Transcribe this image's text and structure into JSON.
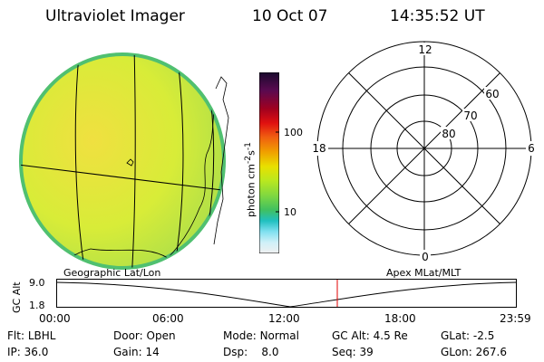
{
  "header": {
    "instrument": "Ultraviolet Imager",
    "date": "10 Oct 07",
    "time": "14:35:52 UT"
  },
  "colorbar": {
    "unit_label": "photon cm",
    "unit_sup1": "-2",
    "unit_mid": "s",
    "unit_sup2": "-1",
    "tick_high": "100",
    "tick_low": "10",
    "colors": [
      "#1a0a2e",
      "#5a0a50",
      "#a00020",
      "#e01010",
      "#f06010",
      "#f0a000",
      "#e8e000",
      "#b8e820",
      "#80d840",
      "#40c060",
      "#20c0c0",
      "#80e0f0",
      "#d0f0f8",
      "#f0f0f0"
    ]
  },
  "map": {
    "label": "Geographic Lat/Lon",
    "fill_top": "#e8f040",
    "fill_bottom": "#c0e040",
    "rim_color": "#50c070"
  },
  "polar": {
    "label": "Apex  MLat/MLT",
    "mlt_top": "12",
    "mlt_left": "18",
    "mlt_right": "6",
    "mlt_bottom": "0",
    "lat_60": "60",
    "lat_70": "70",
    "lat_80": "80"
  },
  "altitude_plot": {
    "ylabel": "GC Alt",
    "y_top": "9.0",
    "y_bottom": "1.8",
    "x_ticks": [
      "00:00",
      "06:00",
      "12:00",
      "18:00",
      "23:59"
    ],
    "marker_color": "#e00000"
  },
  "status": {
    "flt_label": "Flt:",
    "flt_value": "LBHL",
    "ip_label": "IP:",
    "ip_value": "36.0",
    "door_label": "Door:",
    "door_value": "Open",
    "gain_label": "Gain:",
    "gain_value": "14",
    "mode_label": "Mode:",
    "mode_value": "Normal",
    "dsp_label": "Dsp:",
    "dsp_value": "8.0",
    "gcalt_label": "GC Alt:",
    "gcalt_value": "4.5 Re",
    "seq_label": "Seq:",
    "seq_value": "39",
    "glat_label": "GLat:",
    "glat_value": "-2.5",
    "glon_label": "GLon:",
    "glon_value": "267.6"
  }
}
